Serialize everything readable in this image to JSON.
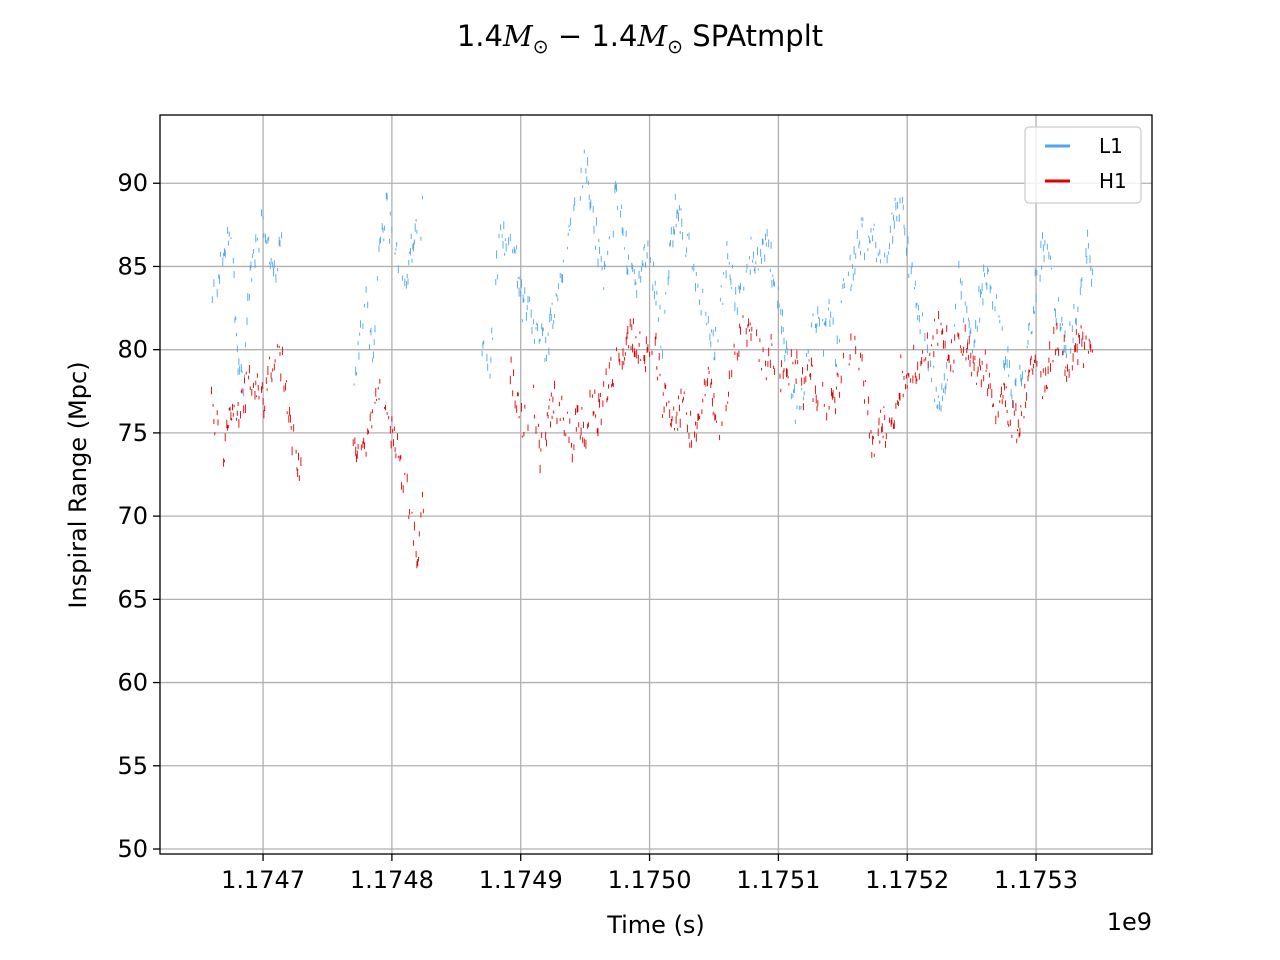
{
  "chart_data": {
    "type": "line",
    "title": {
      "lead": "1.4",
      "mid": " − 1.4",
      "symbol": "M",
      "subscript": "⊙",
      "tail": " SPAtmplt"
    },
    "xlabel": "Time (s)",
    "ylabel": "Inspiral Range (Mpc)",
    "x_offset_label": "1e9",
    "xlim": [
      1.17462,
      1.17539
    ],
    "ylim": [
      49.7,
      94.1
    ],
    "x_ticks": [
      1.1747,
      1.1748,
      1.1749,
      1.175,
      1.1751,
      1.1752,
      1.1753
    ],
    "x_tick_labels": [
      "1.1747",
      "1.1748",
      "1.1749",
      "1.1750",
      "1.1751",
      "1.1752",
      "1.1753"
    ],
    "y_ticks": [
      50,
      55,
      60,
      65,
      70,
      75,
      80,
      85,
      90
    ],
    "y_tick_labels": [
      "50",
      "55",
      "60",
      "65",
      "70",
      "75",
      "80",
      "85",
      "90"
    ],
    "grid": true,
    "legend_position": "top-right",
    "series": [
      {
        "name": "L1",
        "color": "#4da6ef",
        "anchors": [
          [
            1.17466,
            82.5
          ],
          [
            1.17467,
            86.0
          ],
          [
            1.174675,
            87.5
          ],
          [
            1.17468,
            80.0
          ],
          [
            1.174685,
            78.0
          ],
          [
            1.17469,
            84.5
          ],
          [
            1.174695,
            86.5
          ],
          [
            1.1747,
            88.0
          ],
          [
            1.174705,
            86.0
          ],
          [
            1.17471,
            84.5
          ],
          [
            1.174715,
            86.5
          ],
          [
            1.17477,
            76.5
          ],
          [
            1.174775,
            80.5
          ],
          [
            1.17478,
            83.0
          ],
          [
            1.174785,
            79.0
          ],
          [
            1.17479,
            85.0
          ],
          [
            1.174795,
            88.5
          ],
          [
            1.17481,
            84.0
          ],
          [
            1.174815,
            86.0
          ],
          [
            1.17482,
            87.0
          ],
          [
            1.174825,
            88.5
          ],
          [
            1.17487,
            80.0
          ],
          [
            1.174875,
            78.0
          ],
          [
            1.17488,
            84.0
          ],
          [
            1.174885,
            87.5
          ],
          [
            1.17489,
            85.5
          ],
          [
            1.174895,
            86.5
          ],
          [
            1.1749,
            83.0
          ],
          [
            1.17492,
            80.0
          ],
          [
            1.174925,
            82.5
          ],
          [
            1.17493,
            84.0
          ],
          [
            1.174935,
            86.0
          ],
          [
            1.17494,
            88.0
          ],
          [
            1.174945,
            89.5
          ],
          [
            1.17495,
            91.5
          ],
          [
            1.174955,
            89.0
          ],
          [
            1.17496,
            86.0
          ],
          [
            1.174965,
            84.5
          ],
          [
            1.17497,
            87.0
          ],
          [
            1.174975,
            89.5
          ],
          [
            1.17498,
            86.5
          ],
          [
            1.174985,
            85.0
          ],
          [
            1.17499,
            84.0
          ],
          [
            1.175,
            86.0
          ],
          [
            1.175005,
            83.5
          ],
          [
            1.17501,
            80.5
          ],
          [
            1.175015,
            85.0
          ],
          [
            1.17502,
            88.5
          ],
          [
            1.175025,
            87.5
          ],
          [
            1.17503,
            86.0
          ],
          [
            1.175035,
            84.5
          ],
          [
            1.17504,
            83.0
          ],
          [
            1.175045,
            81.5
          ],
          [
            1.17505,
            80.0
          ],
          [
            1.175055,
            82.5
          ],
          [
            1.17506,
            86.0
          ],
          [
            1.175065,
            84.0
          ],
          [
            1.17507,
            82.5
          ],
          [
            1.175075,
            84.5
          ],
          [
            1.17508,
            86.0
          ],
          [
            1.175085,
            85.0
          ],
          [
            1.17509,
            86.5
          ],
          [
            1.175095,
            85.0
          ],
          [
            1.1751,
            83.0
          ],
          [
            1.175105,
            80.0
          ],
          [
            1.17511,
            78.0
          ],
          [
            1.175115,
            76.0
          ],
          [
            1.17512,
            77.5
          ],
          [
            1.175125,
            80.5
          ],
          [
            1.17513,
            82.5
          ],
          [
            1.175135,
            80.5
          ],
          [
            1.17514,
            82.0
          ],
          [
            1.175145,
            80.0
          ],
          [
            1.17515,
            83.0
          ],
          [
            1.175155,
            84.5
          ],
          [
            1.17516,
            85.5
          ],
          [
            1.175165,
            87.0
          ],
          [
            1.17517,
            86.0
          ],
          [
            1.175175,
            86.5
          ],
          [
            1.17518,
            85.0
          ],
          [
            1.175185,
            86.0
          ],
          [
            1.17519,
            88.0
          ],
          [
            1.175195,
            89.0
          ],
          [
            1.1752,
            86.0
          ],
          [
            1.175205,
            84.0
          ],
          [
            1.17521,
            82.0
          ],
          [
            1.175215,
            80.5
          ],
          [
            1.17522,
            78.5
          ],
          [
            1.175225,
            76.0
          ],
          [
            1.17523,
            78.5
          ],
          [
            1.175235,
            80.5
          ],
          [
            1.17524,
            84.5
          ],
          [
            1.175245,
            82.0
          ],
          [
            1.17525,
            80.5
          ],
          [
            1.175255,
            82.5
          ],
          [
            1.17526,
            84.0
          ],
          [
            1.175265,
            83.5
          ],
          [
            1.17527,
            82.0
          ],
          [
            1.175275,
            80.0
          ],
          [
            1.17528,
            78.5
          ],
          [
            1.175285,
            77.0
          ],
          [
            1.17529,
            79.0
          ],
          [
            1.175295,
            81.0
          ],
          [
            1.1753,
            84.0
          ],
          [
            1.175305,
            86.0
          ],
          [
            1.17531,
            85.0
          ],
          [
            1.175315,
            83.0
          ],
          [
            1.17532,
            81.0
          ],
          [
            1.175325,
            80.0
          ],
          [
            1.17533,
            82.0
          ],
          [
            1.175335,
            84.0
          ],
          [
            1.17534,
            86.0
          ],
          [
            1.175345,
            84.5
          ]
        ]
      },
      {
        "name": "H1",
        "color": "#e00000",
        "anchors": [
          [
            1.17466,
            76.5
          ],
          [
            1.174665,
            75.0
          ],
          [
            1.17467,
            74.0
          ],
          [
            1.174675,
            76.0
          ],
          [
            1.17468,
            75.5
          ],
          [
            1.174685,
            77.0
          ],
          [
            1.17469,
            78.5
          ],
          [
            1.174695,
            77.5
          ],
          [
            1.1747,
            77.0
          ],
          [
            1.174705,
            78.5
          ],
          [
            1.17471,
            79.5
          ],
          [
            1.174715,
            79.0
          ],
          [
            1.17472,
            76.0
          ],
          [
            1.174725,
            74.0
          ],
          [
            1.17473,
            72.0
          ],
          [
            1.17477,
            75.0
          ],
          [
            1.174775,
            73.5
          ],
          [
            1.17478,
            74.5
          ],
          [
            1.174785,
            76.5
          ],
          [
            1.17479,
            78.0
          ],
          [
            1.17481,
            72.0
          ],
          [
            1.174815,
            70.0
          ],
          [
            1.17482,
            67.0
          ],
          [
            1.174825,
            72.0
          ],
          [
            1.17489,
            79.0
          ],
          [
            1.174895,
            78.0
          ],
          [
            1.1749,
            76.0
          ],
          [
            1.174905,
            75.5
          ],
          [
            1.17491,
            77.0
          ],
          [
            1.174915,
            73.5
          ],
          [
            1.17492,
            75.0
          ],
          [
            1.174925,
            77.0
          ],
          [
            1.17493,
            76.5
          ],
          [
            1.174935,
            75.5
          ],
          [
            1.17494,
            74.5
          ],
          [
            1.174945,
            76.0
          ],
          [
            1.17495,
            75.0
          ],
          [
            1.174955,
            77.0
          ],
          [
            1.17496,
            76.0
          ],
          [
            1.174965,
            77.5
          ],
          [
            1.17497,
            78.5
          ],
          [
            1.174975,
            79.5
          ],
          [
            1.17498,
            80.0
          ],
          [
            1.174985,
            81.0
          ],
          [
            1.17499,
            80.5
          ],
          [
            1.175,
            79.5
          ],
          [
            1.175005,
            80.0
          ],
          [
            1.17501,
            77.0
          ],
          [
            1.175015,
            76.5
          ],
          [
            1.17502,
            75.5
          ],
          [
            1.175025,
            77.0
          ],
          [
            1.17503,
            75.5
          ],
          [
            1.175035,
            74.5
          ],
          [
            1.17504,
            76.5
          ],
          [
            1.175045,
            78.0
          ],
          [
            1.17505,
            77.0
          ],
          [
            1.175055,
            75.5
          ],
          [
            1.17506,
            77.0
          ],
          [
            1.175065,
            79.0
          ],
          [
            1.17507,
            80.5
          ],
          [
            1.175075,
            81.5
          ],
          [
            1.17508,
            80.5
          ],
          [
            1.175085,
            80.0
          ],
          [
            1.17509,
            79.0
          ],
          [
            1.175095,
            80.0
          ],
          [
            1.1751,
            79.0
          ],
          [
            1.175105,
            78.0
          ],
          [
            1.17511,
            79.5
          ],
          [
            1.175115,
            78.5
          ],
          [
            1.17512,
            77.5
          ],
          [
            1.175125,
            79.0
          ],
          [
            1.17513,
            76.5
          ],
          [
            1.175135,
            77.5
          ],
          [
            1.17514,
            76.5
          ],
          [
            1.175145,
            77.5
          ],
          [
            1.17515,
            78.5
          ],
          [
            1.175155,
            79.5
          ],
          [
            1.17516,
            80.5
          ],
          [
            1.175165,
            78.5
          ],
          [
            1.17517,
            76.0
          ],
          [
            1.175175,
            73.0
          ],
          [
            1.17518,
            76.0
          ],
          [
            1.175185,
            75.0
          ],
          [
            1.17519,
            76.5
          ],
          [
            1.175195,
            78.5
          ],
          [
            1.1752,
            78.0
          ],
          [
            1.175205,
            79.5
          ],
          [
            1.17521,
            78.5
          ],
          [
            1.175215,
            80.0
          ],
          [
            1.17522,
            80.5
          ],
          [
            1.175225,
            81.5
          ],
          [
            1.17523,
            80.5
          ],
          [
            1.175235,
            79.5
          ],
          [
            1.17524,
            80.0
          ],
          [
            1.175245,
            80.5
          ],
          [
            1.17525,
            79.5
          ],
          [
            1.175255,
            78.5
          ],
          [
            1.17526,
            79.0
          ],
          [
            1.175265,
            77.0
          ],
          [
            1.17527,
            76.0
          ],
          [
            1.175275,
            77.5
          ],
          [
            1.17528,
            76.0
          ],
          [
            1.175285,
            75.5
          ],
          [
            1.17529,
            76.5
          ],
          [
            1.175295,
            78.5
          ],
          [
            1.1753,
            79.0
          ],
          [
            1.175305,
            78.0
          ],
          [
            1.17531,
            79.0
          ],
          [
            1.175315,
            80.5
          ],
          [
            1.17532,
            80.0
          ],
          [
            1.175325,
            79.0
          ],
          [
            1.17533,
            80.0
          ],
          [
            1.175335,
            80.5
          ],
          [
            1.17534,
            79.5
          ],
          [
            1.175345,
            80.0
          ]
        ]
      }
    ]
  }
}
